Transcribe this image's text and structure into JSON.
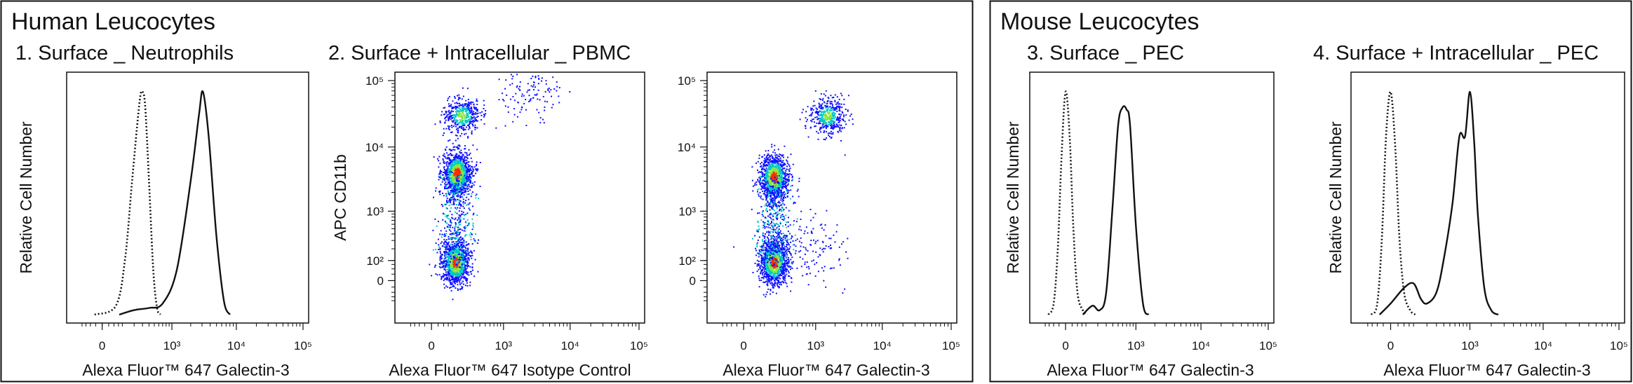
{
  "figure": {
    "panels": [
      {
        "title": "Human Leucocytes"
      },
      {
        "title": "Mouse Leucocytes"
      }
    ],
    "colors": {
      "line": "#111111",
      "density_low": "#1010ff",
      "density_mid": "#00c8c8",
      "density_mid2": "#8ae63c",
      "density_high": "#ff2a00"
    }
  },
  "chart_data": [
    {
      "type": "line",
      "title": "1. Surface _ Neutrophils",
      "xlabel": "Alexa Fluor™ 647 Galectin-3",
      "ylabel": "Relative Cell Number",
      "x_scale": "biexponential",
      "x_ticks": [
        "0",
        "10³",
        "10⁴",
        "10⁵"
      ],
      "series": [
        {
          "style": "dotted",
          "x": [
            -30,
            60,
            120,
            180,
            260,
            300,
            340,
            400,
            480,
            560,
            640
          ],
          "y": [
            0.0,
            0.04,
            0.25,
            0.6,
            0.95,
            1.0,
            0.93,
            0.6,
            0.2,
            0.03,
            0.0
          ]
        },
        {
          "style": "solid",
          "x": [
            80,
            200,
            400,
            700,
            1200,
            2000,
            2700,
            3100,
            3800,
            5000,
            6500,
            8000
          ],
          "y": [
            0.0,
            0.02,
            0.03,
            0.05,
            0.2,
            0.6,
            0.9,
            1.0,
            0.8,
            0.35,
            0.06,
            0.0
          ]
        }
      ]
    },
    {
      "type": "scatter",
      "title": "2. Surface + Intracellular _ PBMC",
      "xlabel": "Alexa Fluor™ 647 Isotype Control",
      "ylabel": "APC CD11b",
      "x_scale": "biexponential",
      "y_scale": "biexponential",
      "x_ticks": [
        "0",
        "10³",
        "10⁴",
        "10⁵"
      ],
      "y_ticks": [
        "0",
        "10²",
        "10³",
        "10⁴",
        "10⁵"
      ],
      "populations": [
        {
          "x_center": 120,
          "y_center": 90,
          "density": "high"
        },
        {
          "x_center": 130,
          "y_center": 4000,
          "density": "high"
        },
        {
          "x_center": 170,
          "y_center": 30000,
          "density": "medium"
        },
        {
          "x_center": 2500,
          "y_center": 80000,
          "density": "low"
        }
      ]
    },
    {
      "type": "scatter",
      "title": "",
      "xlabel": "Alexa Fluor™ 647 Galectin-3",
      "ylabel": "",
      "x_scale": "biexponential",
      "y_scale": "biexponential",
      "x_ticks": [
        "0",
        "10³",
        "10⁴",
        "10⁵"
      ],
      "y_ticks": [
        "0",
        "10²",
        "10³",
        "10⁴",
        "10⁵"
      ],
      "populations": [
        {
          "x_center": 170,
          "y_center": 90,
          "density": "high"
        },
        {
          "x_center": 170,
          "y_center": 3500,
          "density": "high"
        },
        {
          "x_center": 1500,
          "y_center": 30000,
          "density": "medium"
        },
        {
          "x_center": 800,
          "y_center": 200,
          "density": "low"
        }
      ]
    },
    {
      "type": "line",
      "title": "3. Surface _ PEC",
      "xlabel": "Alexa Fluor™ 647 Galectin-3",
      "ylabel": "Relative Cell Number",
      "x_scale": "biexponential",
      "x_ticks": [
        "0",
        "10³",
        "10⁴",
        "10⁵"
      ],
      "series": [
        {
          "style": "dotted",
          "x": [
            -80,
            -50,
            -30,
            -15,
            0,
            15,
            30,
            50,
            80,
            110
          ],
          "y": [
            0.0,
            0.05,
            0.3,
            0.7,
            1.0,
            0.8,
            0.4,
            0.1,
            0.02,
            0.0
          ]
        },
        {
          "style": "solid",
          "x": [
            80,
            150,
            220,
            300,
            400,
            500,
            600,
            700,
            800,
            1000,
            1300,
            1600
          ],
          "y": [
            0.0,
            0.04,
            0.02,
            0.1,
            0.5,
            0.85,
            0.93,
            0.92,
            0.85,
            0.4,
            0.05,
            0.0
          ]
        }
      ]
    },
    {
      "type": "line",
      "title": "4. Surface + Intracellular _ PEC",
      "xlabel": "Alexa Fluor™ 647 Galectin-3",
      "ylabel": "Relative Cell Number",
      "x_scale": "biexponential",
      "x_ticks": [
        "0",
        "10³",
        "10⁴",
        "10⁵"
      ],
      "series": [
        {
          "style": "dotted",
          "x": [
            -80,
            -50,
            -30,
            -15,
            0,
            15,
            30,
            50,
            80,
            110
          ],
          "y": [
            0.0,
            0.05,
            0.35,
            0.8,
            1.0,
            0.75,
            0.35,
            0.1,
            0.02,
            0.0
          ]
        },
        {
          "style": "solid",
          "x": [
            -40,
            0,
            50,
            100,
            150,
            200,
            300,
            400,
            550,
            700,
            850,
            1000,
            1150,
            1300,
            1600,
            2000,
            2500
          ],
          "y": [
            0.0,
            0.05,
            0.12,
            0.14,
            0.07,
            0.05,
            0.1,
            0.25,
            0.5,
            0.8,
            0.8,
            1.0,
            0.78,
            0.45,
            0.12,
            0.02,
            0.0
          ]
        }
      ]
    }
  ]
}
